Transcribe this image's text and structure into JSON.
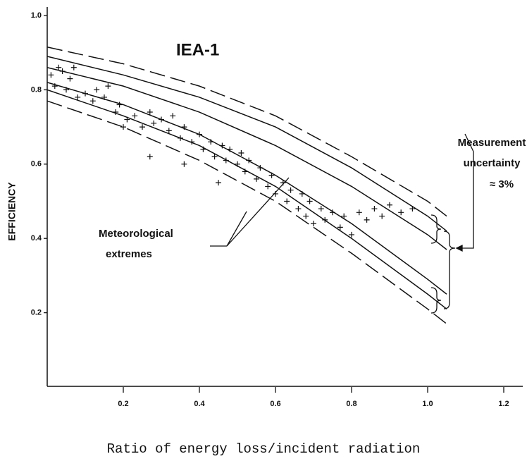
{
  "chart_data": {
    "type": "scatter",
    "title": "IEA-1",
    "xlabel": "Ratio of energy loss/incident radiation",
    "ylabel": "EFFICIENCY",
    "annotations": {
      "meteorological": [
        "Meteorological",
        "extremes"
      ],
      "measurement": [
        "Measurement",
        "uncertainty",
        "≈ 3%"
      ]
    },
    "xlim": [
      0,
      1.25
    ],
    "ylim": [
      0,
      1
    ],
    "xticks": [
      0.2,
      0.4,
      0.6,
      0.8,
      {
        "value": 1,
        "label": "1.0"
      },
      1.2
    ],
    "yticks": [
      0.2,
      0.4,
      0.6,
      0.8,
      {
        "value": 1,
        "label": "1.0"
      }
    ],
    "color": "#111111",
    "x": [
      0.01,
      0.02,
      0.03,
      0.04,
      0.05,
      0.06,
      0.07,
      0.08,
      0.1,
      0.12,
      0.13,
      0.15,
      0.16,
      0.18,
      0.19,
      0.21,
      0.23,
      0.25,
      0.27,
      0.28,
      0.3,
      0.32,
      0.33,
      0.35,
      0.36,
      0.38,
      0.4,
      0.41,
      0.43,
      0.44,
      0.46,
      0.47,
      0.48,
      0.5,
      0.51,
      0.52,
      0.53,
      0.55,
      0.56,
      0.58,
      0.59,
      0.6,
      0.62,
      0.63,
      0.64,
      0.66,
      0.67,
      0.68,
      0.69,
      0.7,
      0.72,
      0.73,
      0.75,
      0.77,
      0.78,
      0.8,
      0.82,
      0.84,
      0.86,
      0.88,
      0.9,
      0.93,
      0.96,
      0.36,
      0.27,
      0.2,
      0.45
    ],
    "values": [
      0.84,
      0.81,
      0.86,
      0.85,
      0.8,
      0.83,
      0.86,
      0.78,
      0.79,
      0.77,
      0.8,
      0.78,
      0.81,
      0.74,
      0.76,
      0.72,
      0.73,
      0.7,
      0.74,
      0.71,
      0.72,
      0.69,
      0.73,
      0.67,
      0.7,
      0.66,
      0.68,
      0.64,
      0.66,
      0.62,
      0.65,
      0.61,
      0.64,
      0.6,
      0.63,
      0.58,
      0.61,
      0.56,
      0.59,
      0.54,
      0.57,
      0.52,
      0.55,
      0.5,
      0.53,
      0.48,
      0.52,
      0.46,
      0.5,
      0.44,
      0.48,
      0.45,
      0.47,
      0.43,
      0.46,
      0.41,
      0.47,
      0.45,
      0.48,
      0.46,
      0.49,
      0.47,
      0.48,
      0.6,
      0.62,
      0.7,
      0.55
    ],
    "line_x": [
      0,
      0.2,
      0.4,
      0.6,
      0.8,
      1.0,
      1.05
    ],
    "lines": [
      {
        "style": "dashed",
        "values": [
          0.915,
          0.87,
          0.81,
          0.73,
          0.62,
          0.5,
          0.46
        ]
      },
      {
        "style": "solid",
        "values": [
          0.89,
          0.84,
          0.78,
          0.7,
          0.59,
          0.46,
          0.42
        ]
      },
      {
        "style": "solid",
        "values": [
          0.86,
          0.81,
          0.74,
          0.65,
          0.54,
          0.41,
          0.37
        ]
      },
      {
        "style": "solid",
        "values": [
          0.82,
          0.76,
          0.68,
          0.57,
          0.44,
          0.29,
          0.25
        ]
      },
      {
        "style": "solid",
        "values": [
          0.8,
          0.73,
          0.65,
          0.54,
          0.4,
          0.25,
          0.21
        ]
      },
      {
        "style": "dashed",
        "values": [
          0.77,
          0.7,
          0.61,
          0.5,
          0.36,
          0.21,
          0.17
        ]
      }
    ]
  }
}
